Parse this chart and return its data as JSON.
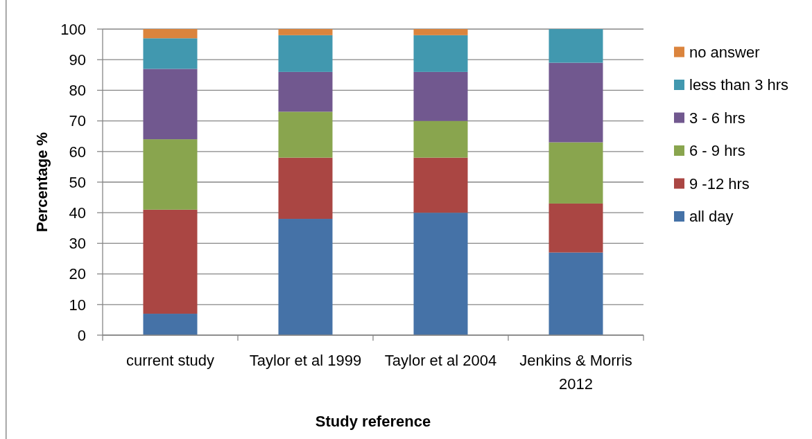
{
  "chart_data": {
    "type": "bar",
    "stacked": true,
    "xlabel": "Study reference",
    "ylabel": "Percentage %",
    "categories": [
      "current study",
      "Taylor et al 1999",
      "Taylor et al 2004",
      "Jenkins & Morris 2012"
    ],
    "series": [
      {
        "name": "all day",
        "color": "#4572a7",
        "values": [
          7,
          38,
          40,
          27
        ]
      },
      {
        "name": "9 -12 hrs",
        "color": "#aa4643",
        "values": [
          34,
          20,
          18,
          16
        ]
      },
      {
        "name": "6 - 9 hrs",
        "color": "#89a54e",
        "values": [
          23,
          15,
          12,
          20
        ]
      },
      {
        "name": "3 - 6 hrs",
        "color": "#71588f",
        "values": [
          23,
          13,
          16,
          26
        ]
      },
      {
        "name": "less than 3 hrs",
        "color": "#4198af",
        "values": [
          10,
          12,
          12,
          11
        ]
      },
      {
        "name": "no answer",
        "color": "#db843d",
        "values": [
          3,
          2,
          2,
          0
        ]
      }
    ],
    "ylim": [
      0,
      100
    ],
    "yticks": [
      0,
      10,
      20,
      30,
      40,
      50,
      60,
      70,
      80,
      90,
      100
    ],
    "grid": "y",
    "legend": "right"
  }
}
